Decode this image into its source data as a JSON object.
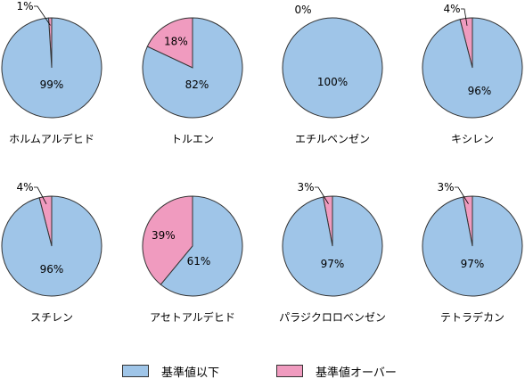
{
  "chart_data": [
    {
      "type": "pie",
      "title": "ホルムアルデヒド",
      "labels": [
        "基準値以下",
        "基準値オーバー"
      ],
      "values": [
        99,
        1
      ],
      "value_labels": [
        "99%",
        "1%"
      ]
    },
    {
      "type": "pie",
      "title": "トルエン",
      "labels": [
        "基準値以下",
        "基準値オーバー"
      ],
      "values": [
        82,
        18
      ],
      "value_labels": [
        "82%",
        "18%"
      ]
    },
    {
      "type": "pie",
      "title": "エチルベンゼン",
      "labels": [
        "基準値以下",
        "基準値オーバー"
      ],
      "values": [
        100,
        0
      ],
      "value_labels": [
        "100%",
        "0%"
      ]
    },
    {
      "type": "pie",
      "title": "キシレン",
      "labels": [
        "基準値以下",
        "基準値オーバー"
      ],
      "values": [
        96,
        4
      ],
      "value_labels": [
        "96%",
        "4%"
      ]
    },
    {
      "type": "pie",
      "title": "スチレン",
      "labels": [
        "基準値以下",
        "基準値オーバー"
      ],
      "values": [
        96,
        4
      ],
      "value_labels": [
        "96%",
        "4%"
      ]
    },
    {
      "type": "pie",
      "title": "アセトアルデヒド",
      "labels": [
        "基準値以下",
        "基準値オーバー"
      ],
      "values": [
        61,
        39
      ],
      "value_labels": [
        "61%",
        "39%"
      ]
    },
    {
      "type": "pie",
      "title": "パラジクロロベンゼン",
      "labels": [
        "基準値以下",
        "基準値オーバー"
      ],
      "values": [
        97,
        3
      ],
      "value_labels": [
        "97%",
        "3%"
      ]
    },
    {
      "type": "pie",
      "title": "テトラデカン",
      "labels": [
        "基準値以下",
        "基準値オーバー"
      ],
      "values": [
        97,
        3
      ],
      "value_labels": [
        "97%",
        "3%"
      ]
    }
  ],
  "legend": [
    {
      "label": "基準値以下",
      "color": "#9fc5e8"
    },
    {
      "label": "基準値オーバー",
      "color": "#f09bbf"
    }
  ],
  "colors": {
    "below": "#9fc5e8",
    "over": "#f09bbf",
    "stroke": "#333333"
  }
}
